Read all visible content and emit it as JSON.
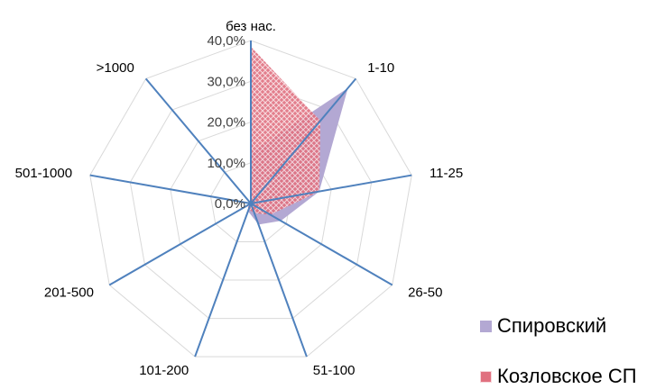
{
  "chart_data": {
    "type": "radar",
    "categories": [
      "без нас.",
      "1-10",
      "11-25",
      "26-50",
      "51-100",
      "101-200",
      "201-500",
      "501-1000",
      ">1000"
    ],
    "rlim": [
      0,
      40
    ],
    "tick_labels": [
      "0,0%",
      "10,0%",
      "20,0%",
      "30,0%",
      "40,0%"
    ],
    "grid": true,
    "legend_position": "bottom-right",
    "series": [
      {
        "name": "Спировский",
        "values": [
          12.5,
          37.0,
          17.0,
          8.5,
          5.5,
          2.0,
          0.5,
          0.0,
          0.0
        ],
        "color": "#b3a8d3"
      },
      {
        "name": "Козловское СП",
        "values": [
          38.5,
          26.5,
          17.0,
          5.5,
          2.5,
          1.5,
          1.0,
          0.0,
          0.0
        ],
        "color": "#d9475a"
      }
    ]
  },
  "legend": {
    "spir_label": "Спировский",
    "koz_label": "Козловское СП"
  }
}
